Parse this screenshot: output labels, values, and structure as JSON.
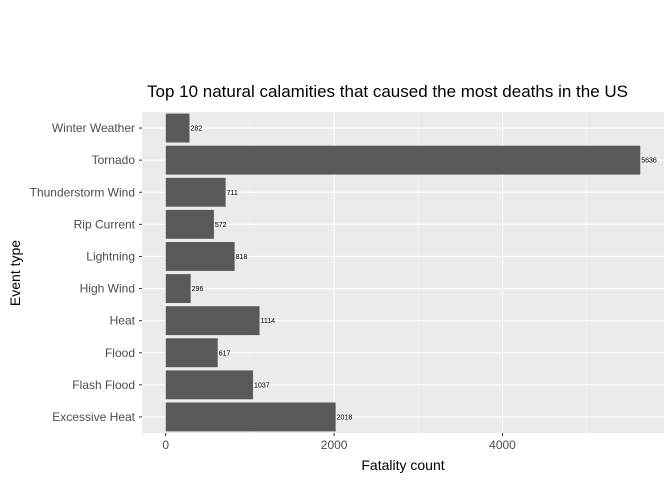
{
  "chart_data": {
    "type": "bar",
    "orientation": "horizontal",
    "title": "Top 10 natural calamities that caused the most deaths in the US",
    "xlabel": "Fatality count",
    "ylabel": "Event type",
    "categories": [
      "Excessive Heat",
      "Flash Flood",
      "Flood",
      "Heat",
      "High Wind",
      "Lightning",
      "Rip Current",
      "Thunderstorm Wind",
      "Tornado",
      "Winter Weather"
    ],
    "values": [
      2018,
      1037,
      617,
      1114,
      296,
      818,
      572,
      711,
      5636,
      282
    ],
    "data_labels": [
      "2018",
      "1037",
      "617",
      "1114",
      "296",
      "818",
      "572",
      "711",
      "5636",
      "282"
    ],
    "x_ticks": [
      0,
      2000,
      4000
    ],
    "x_tick_labels": [
      "0",
      "2000",
      "4000"
    ],
    "xlim": [
      -282,
      5918
    ],
    "grid": true,
    "legend": "none",
    "colors": {
      "panel_background": "#ebebeb",
      "grid_major": "#ffffff",
      "grid_minor": "#f5f5f5",
      "bar_fill": "#595959",
      "tick_text": "#4d4d4d",
      "tick_mark": "#333333"
    }
  }
}
